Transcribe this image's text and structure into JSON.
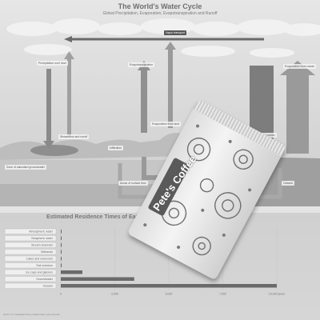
{
  "header": {
    "title": "The World's Water Cycle",
    "subtitle": "Global Precipitation, Evaporation, Evapotranspiration and Runoff"
  },
  "diagram": {
    "labels": {
      "transport": "Vapor transport",
      "precip_land": "Precipitation over land",
      "evap_land": "Evaporation from land",
      "evapotranspiration": "Evapotranspiration",
      "precip_ocean": "Precipitation over ocean",
      "evap_ocean": "Evaporation from ocean",
      "groundwater": "Zone of saturated groundwater",
      "infiltration": "Infiltration",
      "runoff": "Streamflow and runoff",
      "surface_flow": "Areas of surface flow",
      "ocean": "Oceans"
    }
  },
  "residence": {
    "title": "Estimated Residence Times of Earth's Water Resources",
    "rows": [
      {
        "label": "Atmospheric water",
        "value": 0.02
      },
      {
        "label": "Biospheric water",
        "value": 0.01
      },
      {
        "label": "Stream channels",
        "value": 0.05
      },
      {
        "label": "Wetlands",
        "value": 0.8
      },
      {
        "label": "Lakes and reservoirs",
        "value": 10
      },
      {
        "label": "Soil moisture",
        "value": 0.2
      },
      {
        "label": "Ice caps and glaciers",
        "value": 1000
      },
      {
        "label": "Groundwater",
        "value": 3400
      },
      {
        "label": "Oceans",
        "value": 10000
      }
    ],
    "axis_ticks": [
      "0",
      "2,500",
      "5,000",
      "7,500",
      "10,000 years"
    ],
    "axis_max": 10000
  },
  "packet": {
    "brand": "Pete's Coffee"
  },
  "footer": {
    "note": "Source: U.S. Geological Survey; adapted water cycle schematic"
  }
}
